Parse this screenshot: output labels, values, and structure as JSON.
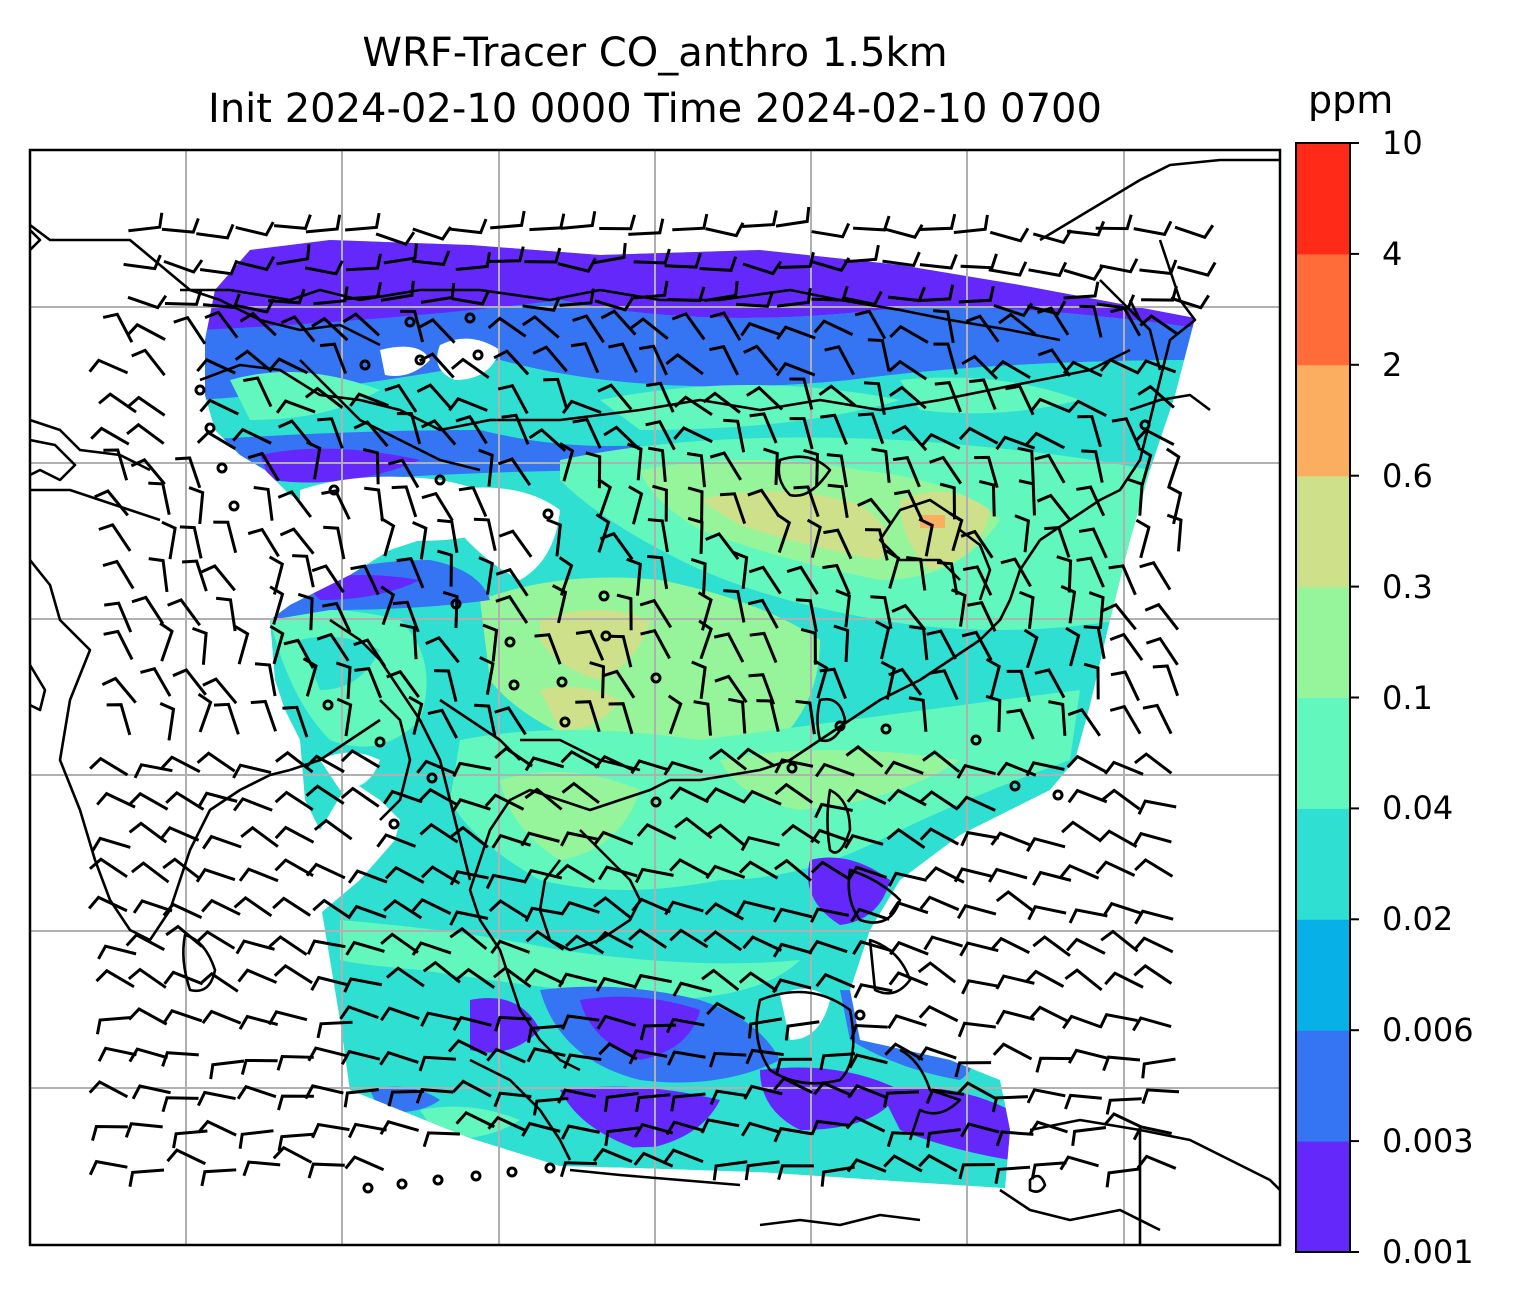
{
  "title_line1": "WRF-Tracer CO_anthro 1.5km",
  "title_line2": "Init 2024-02-10 0000 Time 2024-02-10 0700",
  "colorbar": {
    "unit": "ppm",
    "ticks": [
      "0.001",
      "0.003",
      "0.006",
      "0.02",
      "0.04",
      "0.1",
      "0.3",
      "0.6",
      "2",
      "4",
      "10"
    ],
    "colors": [
      "#6428fa",
      "#3574f2",
      "#08b0e8",
      "#2edfd2",
      "#62f7bd",
      "#96f59a",
      "#cfe08a",
      "#fcae60",
      "#ff6c3a",
      "#ff2a18"
    ]
  },
  "map": {
    "gridlines": true,
    "wind_barbs": true,
    "coastlines": true
  }
}
